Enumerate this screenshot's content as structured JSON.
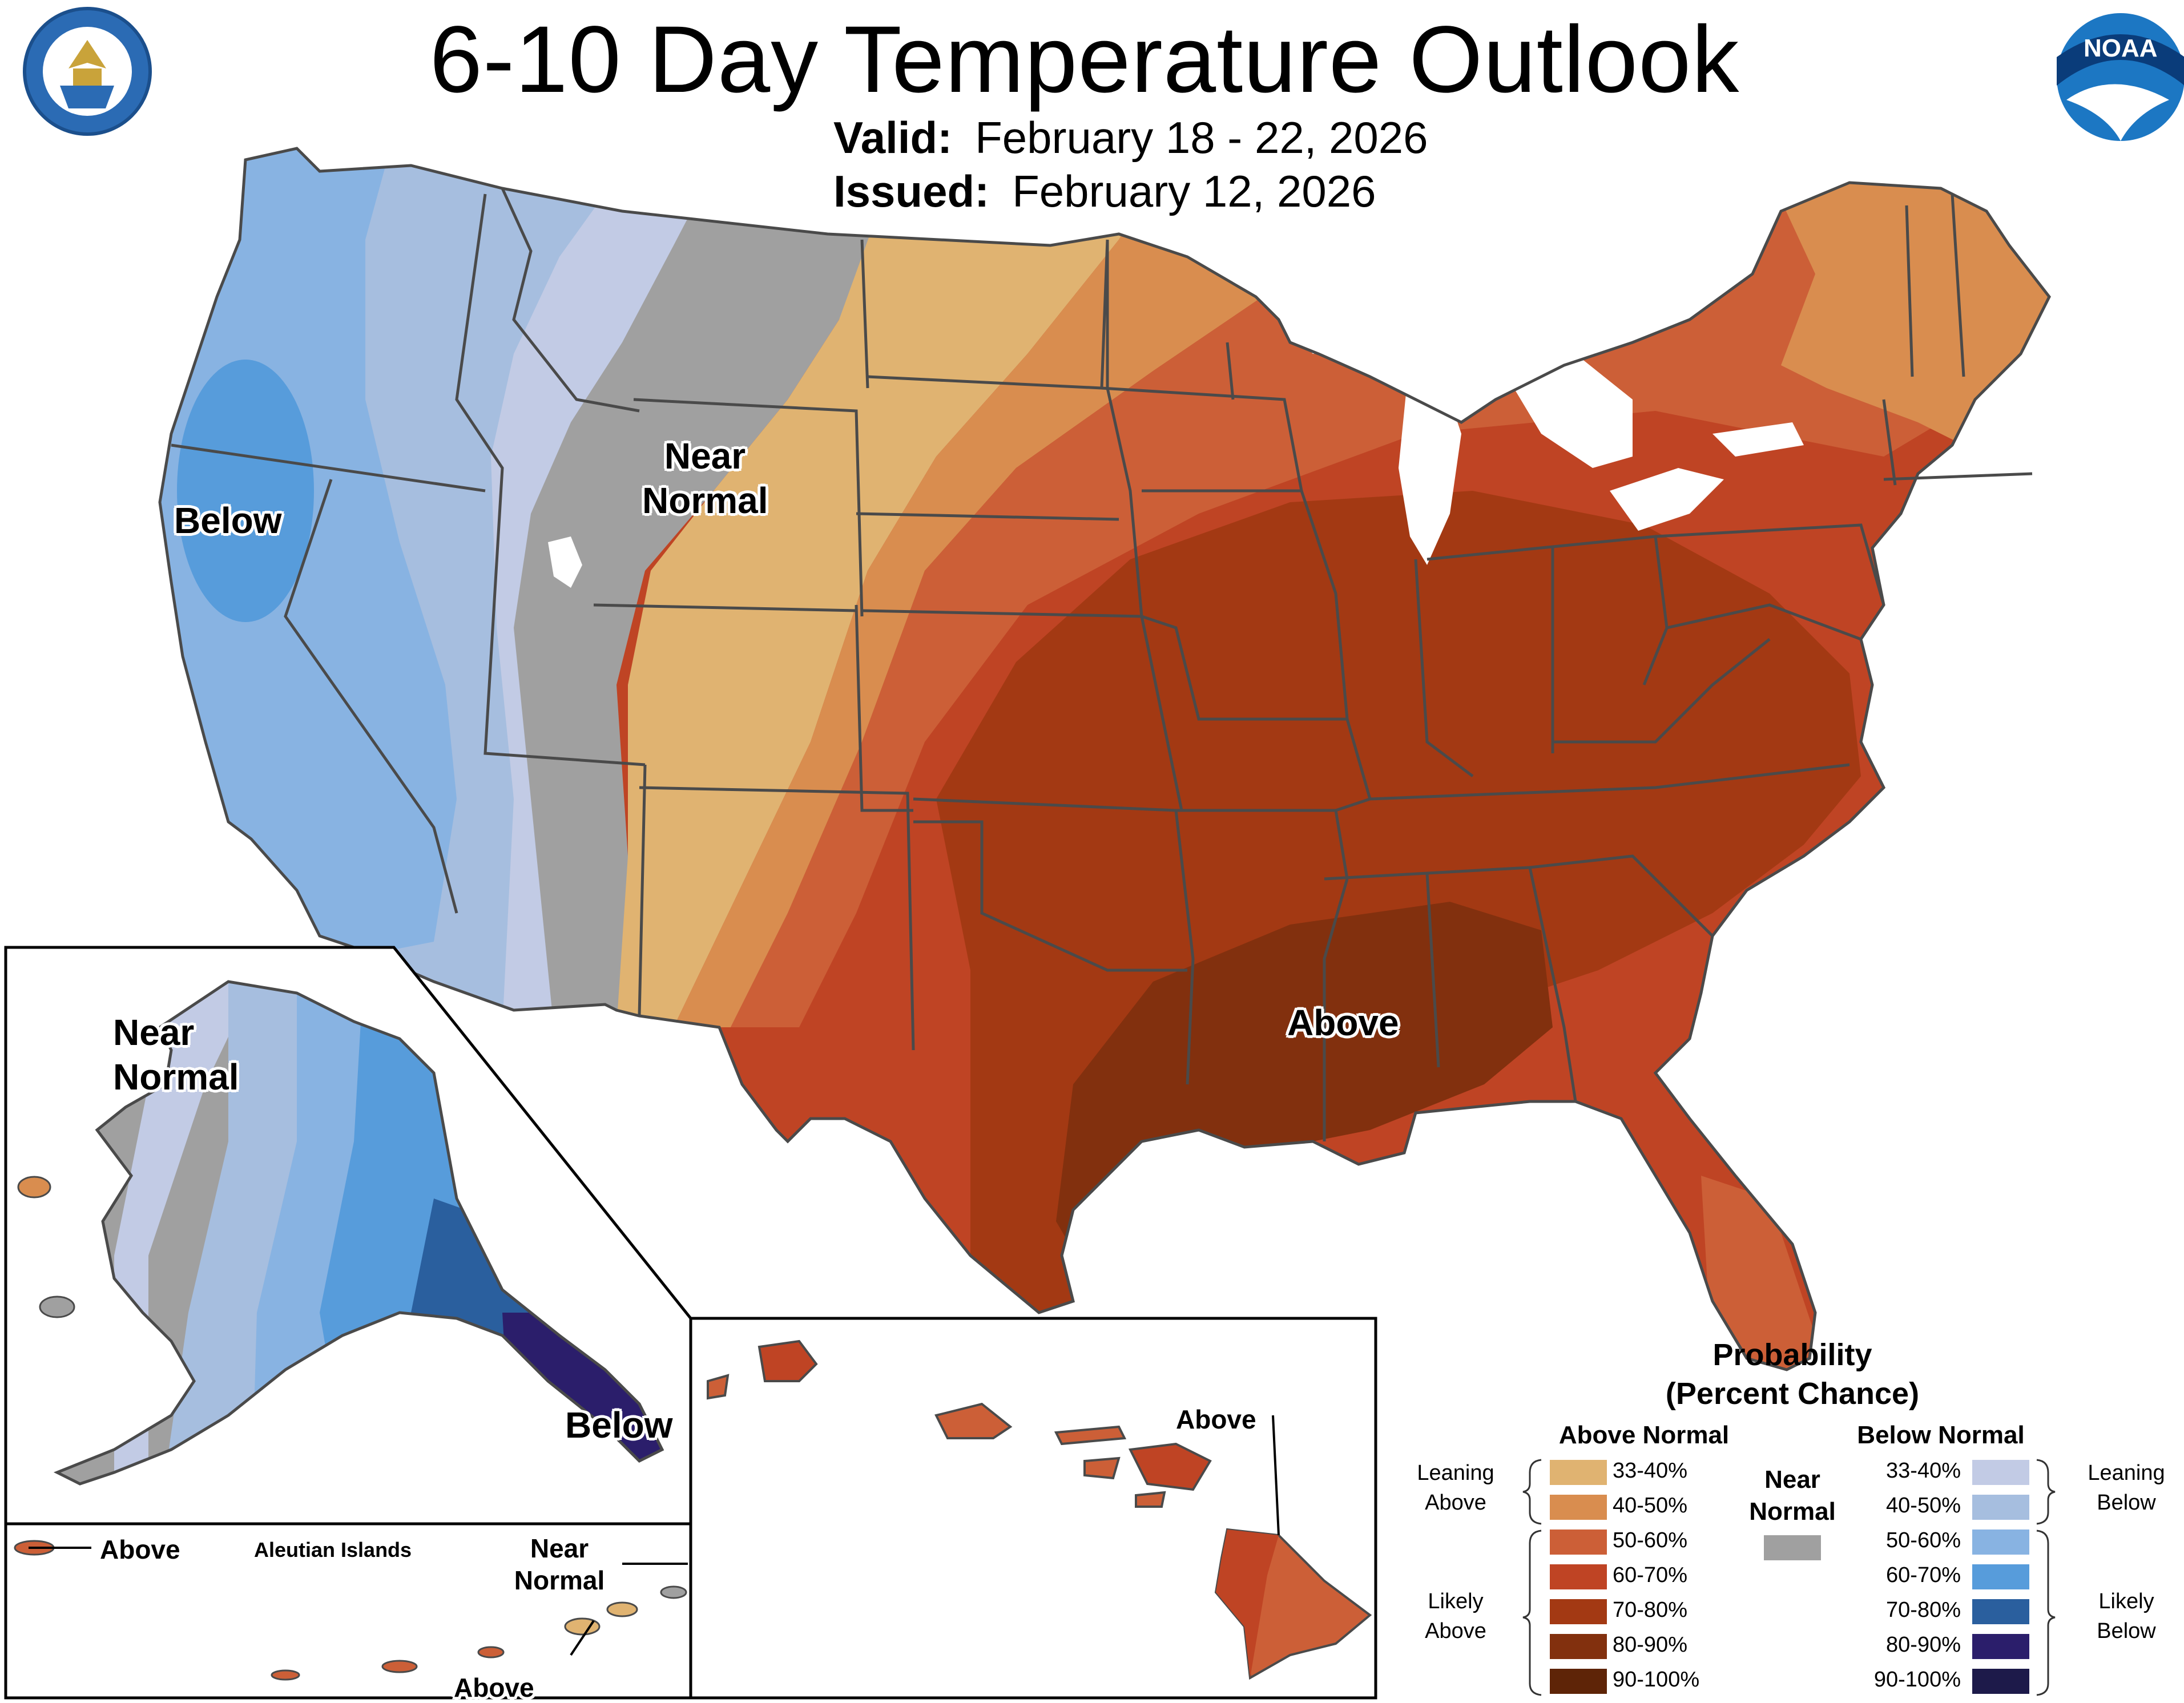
{
  "title": "6-10 Day Temperature Outlook",
  "valid_label": "Valid:",
  "valid_dates": "February 18 - 22, 2026",
  "issued_label": "Issued:",
  "issued_date": "February 12, 2026",
  "logos": {
    "left": "doc-seal",
    "right": "noaa-logo",
    "noaa_text": "NOAA"
  },
  "labels": {
    "conus_below": "Below",
    "conus_near_1": "Near",
    "conus_near_2": "Normal",
    "conus_above": "Above",
    "ak_near_1": "Near",
    "ak_near_2": "Normal",
    "ak_below": "Below",
    "aleut_above_left": "Above",
    "aleut_title": "Aleutian Islands",
    "aleut_near_1": "Near",
    "aleut_near_2": "Normal",
    "aleut_above_bottom": "Above",
    "hi_above": "Above"
  },
  "legend": {
    "title_1": "Probability",
    "title_2": "(Percent Chance)",
    "above_header": "Above Normal",
    "below_header": "Below Normal",
    "near_1": "Near",
    "near_2": "Normal",
    "near_color": "#a0a0a0",
    "leaning_above": [
      "Leaning",
      "Above"
    ],
    "likely_above": [
      "Likely",
      "Above"
    ],
    "leaning_below": [
      "Leaning",
      "Below"
    ],
    "likely_below": [
      "Likely",
      "Below"
    ],
    "above": [
      {
        "range": "33-40%",
        "color": "#e0b371"
      },
      {
        "range": "40-50%",
        "color": "#d98d4f"
      },
      {
        "range": "50-60%",
        "color": "#cc5f37"
      },
      {
        "range": "60-70%",
        "color": "#bf4424"
      },
      {
        "range": "70-80%",
        "color": "#a33913"
      },
      {
        "range": "80-90%",
        "color": "#82300e"
      },
      {
        "range": "90-100%",
        "color": "#5e2407"
      }
    ],
    "below": [
      {
        "range": "33-40%",
        "color": "#c2cbe5"
      },
      {
        "range": "40-50%",
        "color": "#a6bedf"
      },
      {
        "range": "50-60%",
        "color": "#88b3e2"
      },
      {
        "range": "60-70%",
        "color": "#579cdb"
      },
      {
        "range": "70-80%",
        "color": "#2a5f9e"
      },
      {
        "range": "80-90%",
        "color": "#2b1e6b"
      },
      {
        "range": "90-100%",
        "color": "#1d1a4a"
      }
    ]
  }
}
